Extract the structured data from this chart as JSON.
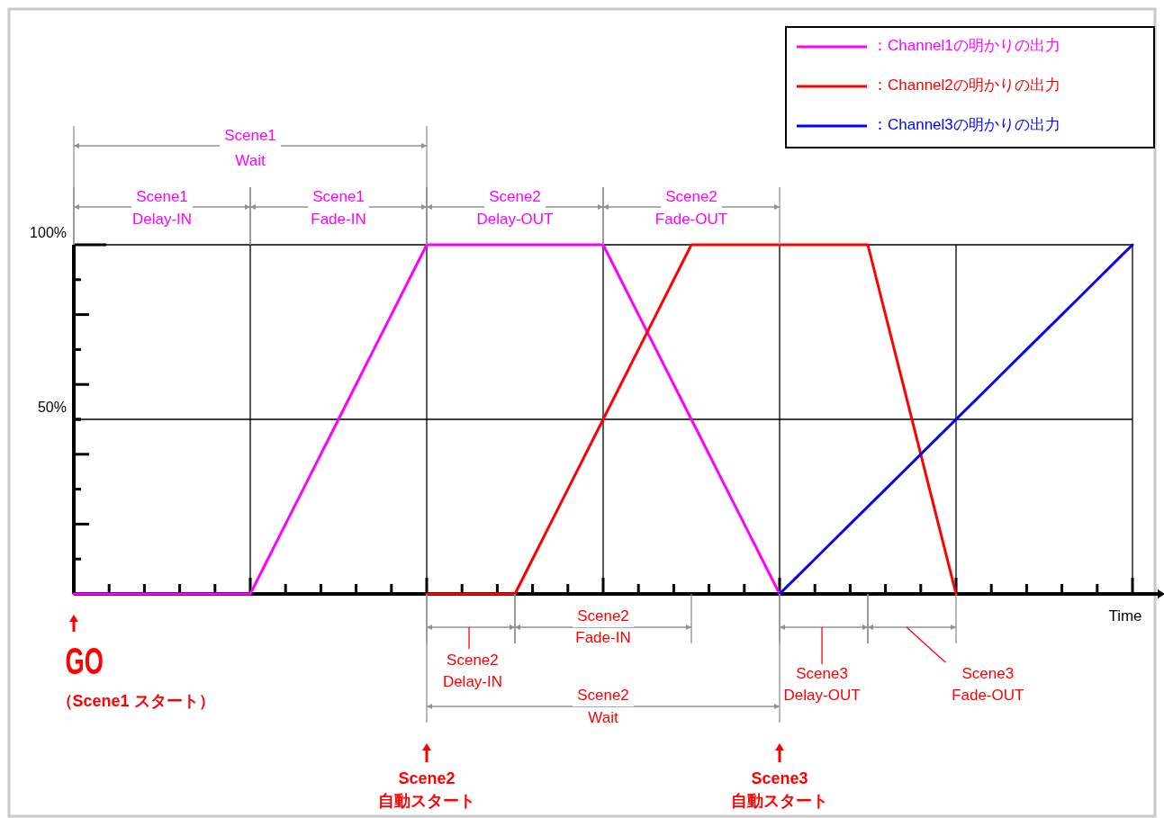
{
  "chart_data": {
    "type": "line",
    "xlabel": "Time",
    "categories": [
      null,
      null,
      null,
      null,
      null,
      null,
      null,
      null,
      null,
      null,
      null,
      null,
      null,
      null,
      null,
      null,
      null,
      null,
      null,
      null,
      null,
      null,
      null,
      null,
      null,
      null,
      null,
      null,
      null,
      null,
      null,
      null,
      null,
      null,
      null,
      null,
      null,
      null,
      null,
      null,
      null,
      null,
      null,
      null,
      null,
      null,
      null,
      null,
      null,
      null,
      null,
      null,
      null,
      null,
      null,
      null,
      null,
      null,
      null,
      null,
      null
    ],
    "ylim": [
      0,
      100
    ],
    "yticks": [
      {
        "value": 50,
        "label": "50%"
      },
      {
        "value": 100,
        "label": "100%"
      }
    ],
    "grid": true,
    "legend": "top right",
    "line_style": "solid",
    "series": [
      {
        "name": "：Channel1の明かりの出力",
        "color": "#ff00ff",
        "values": [
          0,
          0,
          0,
          0,
          0,
          0,
          0,
          0,
          0,
          0,
          0,
          10,
          20,
          30,
          40,
          50,
          60,
          70,
          80,
          90,
          100,
          100,
          100,
          100,
          100,
          100,
          100,
          100,
          100,
          100,
          100,
          90,
          80,
          70,
          60,
          50,
          40,
          30,
          20,
          10,
          0,
          null,
          null,
          null,
          null,
          null,
          null,
          null,
          null,
          null,
          null,
          null,
          null,
          null,
          null,
          null,
          null,
          null,
          null,
          null,
          null
        ]
      },
      {
        "name": "：Channel2の明かりの出力",
        "color": "#ff0000",
        "values": [
          null,
          null,
          null,
          null,
          null,
          null,
          null,
          null,
          null,
          null,
          null,
          null,
          null,
          null,
          null,
          null,
          null,
          null,
          null,
          null,
          0,
          0,
          0,
          0,
          0,
          0,
          10,
          20,
          30,
          40,
          50,
          60,
          70,
          80,
          90,
          100,
          100,
          100,
          100,
          100,
          100,
          100,
          100,
          100,
          100,
          100,
          80,
          60,
          40,
          20,
          0,
          null,
          null,
          null,
          null,
          null,
          null,
          null,
          null,
          null,
          null
        ]
      },
      {
        "name": "：Channel3の明かりの出力",
        "color": "#0000ff",
        "values": [
          null,
          null,
          null,
          null,
          null,
          null,
          null,
          null,
          null,
          null,
          null,
          null,
          null,
          null,
          null,
          null,
          null,
          null,
          null,
          null,
          null,
          null,
          null,
          null,
          null,
          null,
          null,
          null,
          null,
          null,
          null,
          null,
          null,
          null,
          null,
          null,
          null,
          null,
          null,
          null,
          0,
          5,
          10,
          15,
          20,
          25,
          30,
          35,
          40,
          45,
          50,
          55,
          60,
          65,
          70,
          75,
          80,
          85,
          90,
          95,
          100
        ]
      }
    ],
    "annotations": [
      "Scene1\nWait",
      "Scene1\nDelay-IN",
      "Scene1\nFade-IN",
      "Scene2\nDelay-OUT",
      "Scene2\nFade-OUT",
      "Scene2\nDelay-IN",
      "Scene2\nFade-IN",
      "Scene2\nWait",
      "Scene3\nDelay-OUT",
      "Scene3\nFade-OUT",
      "GO",
      "（Scene1 スタート）",
      "Scene2\n自動スタート",
      "Scene3\n自動スタート"
    ]
  }
}
